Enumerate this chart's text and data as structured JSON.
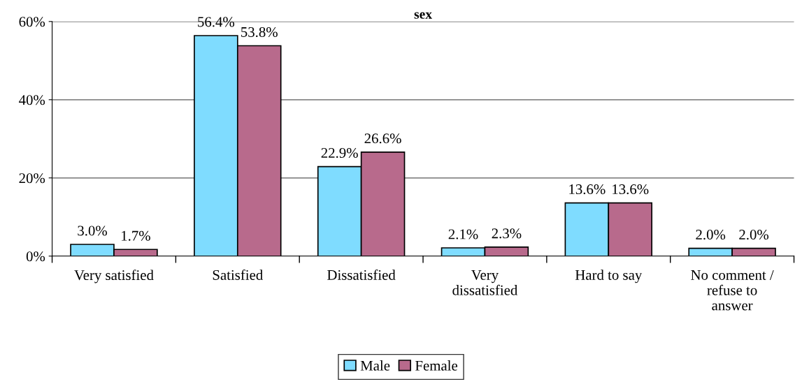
{
  "chart_data": {
    "type": "bar",
    "title": "sex",
    "categories": [
      "Very satisfied",
      "Satisfied",
      "Dissatisfied",
      "Very\ndissatisfied",
      "Hard to say",
      "No comment /\nrefuse to\nanswer"
    ],
    "series": [
      {
        "name": "Male",
        "color": "#7fdcff",
        "values": [
          3.0,
          56.4,
          22.9,
          2.1,
          13.6,
          2.0
        ],
        "value_labels": [
          "3.0%",
          "56.4%",
          "22.9%",
          "2.1%",
          "13.6%",
          "2.0%"
        ]
      },
      {
        "name": "Female",
        "color": "#b86a8c",
        "values": [
          1.7,
          53.8,
          26.6,
          2.3,
          13.6,
          2.0
        ],
        "value_labels": [
          "1.7%",
          "53.8%",
          "26.6%",
          "2.3%",
          "13.6%",
          "2.0%"
        ]
      }
    ],
    "ylim": [
      0,
      60
    ],
    "yticks": [
      {
        "value": 0,
        "label": "0%"
      },
      {
        "value": 20,
        "label": "20%"
      },
      {
        "value": 40,
        "label": "40%"
      },
      {
        "value": 60,
        "label": "60%"
      }
    ],
    "grid": "y",
    "legend": "bottom"
  }
}
